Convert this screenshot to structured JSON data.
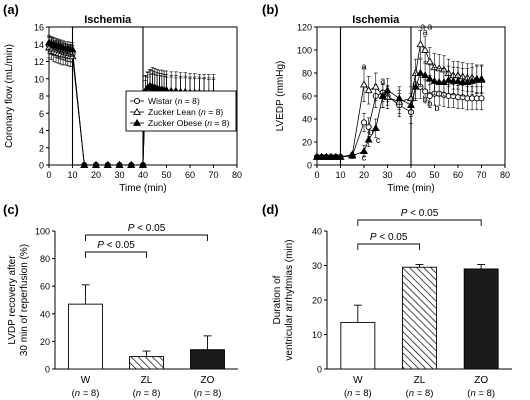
{
  "panel_labels": [
    "(a)",
    "(b)",
    "(c)",
    "(d)"
  ],
  "chart_data": [
    {
      "panel": "(a)",
      "type": "line",
      "xlabel": "Time (min)",
      "ylabel": "Coronary flow (mL/min)",
      "xlim": [
        0,
        80
      ],
      "ylim": [
        0,
        16
      ],
      "xticks": [
        0,
        10,
        20,
        30,
        40,
        50,
        60,
        70,
        80
      ],
      "yticks": [
        0,
        2,
        4,
        6,
        8,
        10,
        12,
        14,
        16
      ],
      "annotation": "Ischemia",
      "ischemia_window": [
        10,
        40
      ],
      "legend_position": "center-right",
      "legend": [
        "Wistar (n = 8)",
        "Zucker Lean (n = 8)",
        "Zucker Obese (n = 8)"
      ],
      "series": [
        {
          "name": "Wistar (n = 8)",
          "marker": "open-circle",
          "x": [
            0,
            1,
            2,
            3,
            4,
            5,
            6,
            7,
            8,
            9,
            10,
            15,
            20,
            25,
            30,
            35,
            40,
            41,
            42,
            43,
            44,
            45,
            46,
            47,
            48,
            49,
            50,
            52,
            54,
            56,
            58,
            60,
            62,
            64,
            66,
            68,
            70
          ],
          "y": [
            13.9,
            13.8,
            13.7,
            13.5,
            13.4,
            13.3,
            13.2,
            13.1,
            13.0,
            13.0,
            12.9,
            0,
            0,
            0,
            0,
            0,
            0,
            7.8,
            8.2,
            8.6,
            8.8,
            8.7,
            8.6,
            8.5,
            8.5,
            8.4,
            8.4,
            8.3,
            8.3,
            8.2,
            8.2,
            8.1,
            8.1,
            8.0,
            8.0,
            8.0,
            8.0
          ],
          "err": [
            1.0,
            1.0,
            1.0,
            1.0,
            1.0,
            1.0,
            1.0,
            1.0,
            1.0,
            1.0,
            1.0,
            0,
            0,
            0,
            0,
            0,
            0,
            2.5,
            2.5,
            2.5,
            2.5,
            2.5,
            2.5,
            2.5,
            2.5,
            2.5,
            2.5,
            2.5,
            2.5,
            2.5,
            2.5,
            2.5,
            2.5,
            2.5,
            2.5,
            2.5,
            2.5
          ]
        },
        {
          "name": "Zucker Lean (n = 8)",
          "marker": "open-triangle",
          "x": [
            0,
            1,
            2,
            3,
            4,
            5,
            6,
            7,
            8,
            9,
            10,
            15,
            20,
            25,
            30,
            35,
            40,
            41,
            42,
            43,
            44,
            45,
            46,
            47,
            48,
            49,
            50,
            52,
            54,
            56,
            58,
            60,
            62,
            64,
            66,
            68,
            70
          ],
          "y": [
            13.6,
            13.4,
            13.2,
            13.1,
            13.0,
            12.9,
            12.8,
            12.8,
            12.7,
            12.6,
            12.6,
            0,
            0,
            0,
            0,
            0,
            0,
            7.6,
            8.0,
            8.3,
            8.4,
            8.3,
            8.2,
            8.2,
            8.1,
            8.1,
            8.0,
            8.0,
            7.9,
            7.9,
            7.9,
            7.8,
            7.8,
            7.8,
            7.8,
            7.7,
            7.7
          ],
          "err": [
            1.2,
            1.2,
            1.2,
            1.2,
            1.2,
            1.2,
            1.2,
            1.2,
            1.2,
            1.2,
            1.2,
            0,
            0,
            0,
            0,
            0,
            0,
            2.2,
            2.2,
            2.2,
            2.2,
            2.2,
            2.2,
            2.2,
            2.2,
            2.2,
            2.2,
            2.2,
            2.2,
            2.2,
            2.2,
            2.2,
            2.2,
            2.2,
            2.2,
            2.2,
            2.2
          ]
        },
        {
          "name": "Zucker Obese (n = 8)",
          "marker": "filled-triangle",
          "x": [
            0,
            1,
            2,
            3,
            4,
            5,
            6,
            7,
            8,
            9,
            10,
            15,
            20,
            25,
            30,
            35,
            40,
            41,
            42,
            43,
            44,
            45,
            46,
            47,
            48,
            49,
            50,
            52,
            54,
            56,
            58,
            60,
            62,
            64,
            66,
            68,
            70
          ],
          "y": [
            14.2,
            14.1,
            14.0,
            13.9,
            13.8,
            13.7,
            13.6,
            13.5,
            13.5,
            13.4,
            13.4,
            0,
            0,
            0,
            0,
            0,
            0,
            8.6,
            9.0,
            9.2,
            9.1,
            9.0,
            8.9,
            8.8,
            8.8,
            8.7,
            8.7,
            8.6,
            8.6,
            8.5,
            8.5,
            8.4,
            8.4,
            8.4,
            8.3,
            8.3,
            8.3
          ],
          "err": [
            0.8,
            0.8,
            0.8,
            0.8,
            0.8,
            0.8,
            0.8,
            0.8,
            0.8,
            0.8,
            0.8,
            0,
            0,
            0,
            0,
            0,
            0,
            1.8,
            1.8,
            1.8,
            1.8,
            1.8,
            1.8,
            1.8,
            1.8,
            1.8,
            1.8,
            1.8,
            1.8,
            1.8,
            1.8,
            1.8,
            1.8,
            1.8,
            1.8,
            1.8,
            1.8
          ]
        }
      ]
    },
    {
      "panel": "(b)",
      "type": "line",
      "xlabel": "Time (min)",
      "ylabel": "LVEDP (mmHg)",
      "xlim": [
        0,
        80
      ],
      "ylim": [
        0,
        120
      ],
      "xticks": [
        0,
        10,
        20,
        30,
        40,
        50,
        60,
        70,
        80
      ],
      "yticks": [
        0,
        20,
        40,
        60,
        80,
        100,
        120
      ],
      "annotation": "Ischemia",
      "ischemia_window": [
        10,
        40
      ],
      "series": [
        {
          "name": "Wistar",
          "marker": "open-circle",
          "x": [
            0,
            2,
            4,
            6,
            8,
            10,
            15,
            20,
            22,
            25,
            28,
            30,
            35,
            40,
            42,
            44,
            46,
            48,
            50,
            52,
            54,
            56,
            58,
            60,
            62,
            64,
            66,
            68,
            70
          ],
          "y": [
            7,
            7,
            7,
            7,
            7,
            7,
            8,
            37,
            33,
            60,
            63,
            60,
            52,
            46,
            70,
            68,
            64,
            60,
            62,
            62,
            61,
            60,
            60,
            59,
            59,
            58,
            58,
            58,
            58
          ],
          "err": [
            1,
            1,
            1,
            1,
            1,
            1,
            1,
            8,
            8,
            10,
            8,
            8,
            10,
            10,
            12,
            10,
            10,
            10,
            10,
            10,
            10,
            10,
            10,
            10,
            10,
            10,
            10,
            10,
            10
          ]
        },
        {
          "name": "Zucker Lean",
          "marker": "open-triangle",
          "x": [
            0,
            2,
            4,
            6,
            8,
            10,
            15,
            20,
            22,
            25,
            28,
            30,
            35,
            40,
            42,
            44,
            46,
            48,
            50,
            52,
            54,
            56,
            58,
            60,
            62,
            64,
            66,
            68,
            70
          ],
          "y": [
            7,
            7,
            7,
            7,
            7,
            7,
            9,
            70,
            65,
            68,
            60,
            59,
            55,
            58,
            80,
            105,
            100,
            90,
            85,
            84,
            83,
            80,
            78,
            78,
            77,
            76,
            76,
            75,
            75
          ],
          "err": [
            1,
            1,
            1,
            1,
            1,
            1,
            2,
            15,
            12,
            12,
            10,
            10,
            10,
            10,
            12,
            12,
            12,
            12,
            12,
            12,
            12,
            12,
            12,
            12,
            12,
            12,
            12,
            12,
            12
          ]
        },
        {
          "name": "Zucker Obese",
          "marker": "filled-triangle",
          "x": [
            0,
            2,
            4,
            6,
            8,
            10,
            15,
            20,
            22,
            25,
            28,
            30,
            35,
            40,
            42,
            44,
            46,
            48,
            50,
            52,
            54,
            56,
            58,
            60,
            62,
            64,
            66,
            68,
            70
          ],
          "y": [
            7,
            7,
            7,
            7,
            7,
            7,
            8,
            12,
            22,
            32,
            60,
            65,
            58,
            52,
            68,
            80,
            78,
            75,
            73,
            72,
            72,
            74,
            73,
            73,
            72,
            72,
            73,
            74,
            74
          ],
          "err": [
            1,
            1,
            1,
            1,
            1,
            1,
            1,
            5,
            6,
            8,
            10,
            10,
            10,
            10,
            12,
            12,
            12,
            12,
            12,
            12,
            12,
            12,
            12,
            12,
            12,
            12,
            12,
            12,
            12
          ]
        }
      ],
      "significance_labels": [
        {
          "x": 20,
          "y": 83,
          "text": "a"
        },
        {
          "x": 28,
          "y": 71,
          "text": "a"
        },
        {
          "x": 23,
          "y": 26,
          "text": "b"
        },
        {
          "x": 26,
          "y": 19,
          "text": "c"
        },
        {
          "x": 20,
          "y": 4,
          "text": "c"
        },
        {
          "x": 45,
          "y": 118,
          "text": "a"
        },
        {
          "x": 48,
          "y": 118,
          "text": "a"
        },
        {
          "x": 46,
          "y": 113,
          "text": "a"
        },
        {
          "x": 46,
          "y": 55,
          "text": "b"
        },
        {
          "x": 48,
          "y": 51,
          "text": "b"
        },
        {
          "x": 51,
          "y": 47,
          "text": "b"
        }
      ]
    },
    {
      "panel": "(c)",
      "type": "bar",
      "ylabel": "LVDP recovery after 30 min of reperfusion (%)",
      "ylim": [
        0,
        100
      ],
      "yticks": [
        0,
        20,
        40,
        60,
        80,
        100
      ],
      "categories": [
        "W",
        "ZL",
        "ZO"
      ],
      "sample_sizes": [
        "(n = 8)",
        "(n = 8)",
        "(n = 8)"
      ],
      "values": [
        47,
        9,
        14
      ],
      "errors": [
        14,
        4,
        10
      ],
      "fills": [
        "white",
        "hatched",
        "black"
      ],
      "brackets": [
        {
          "from": "W",
          "to": "ZL",
          "text": "P < 0.05"
        },
        {
          "from": "W",
          "to": "ZO",
          "text": "P < 0.05"
        }
      ]
    },
    {
      "panel": "(d)",
      "type": "bar",
      "ylabel": "Duration of ventricular arrhytmias (min)",
      "ylim": [
        0,
        40
      ],
      "yticks": [
        0,
        10,
        20,
        30,
        40
      ],
      "categories": [
        "W",
        "ZL",
        "ZO"
      ],
      "sample_sizes": [
        "(n = 8)",
        "(n = 8)",
        "(n = 8)"
      ],
      "values": [
        13.5,
        29.5,
        29
      ],
      "errors": [
        5,
        0.8,
        1.3
      ],
      "fills": [
        "white",
        "hatched",
        "black"
      ],
      "brackets": [
        {
          "from": "W",
          "to": "ZL",
          "text": "P < 0.05"
        },
        {
          "from": "W",
          "to": "ZO",
          "text": "P < 0.05"
        }
      ]
    }
  ]
}
